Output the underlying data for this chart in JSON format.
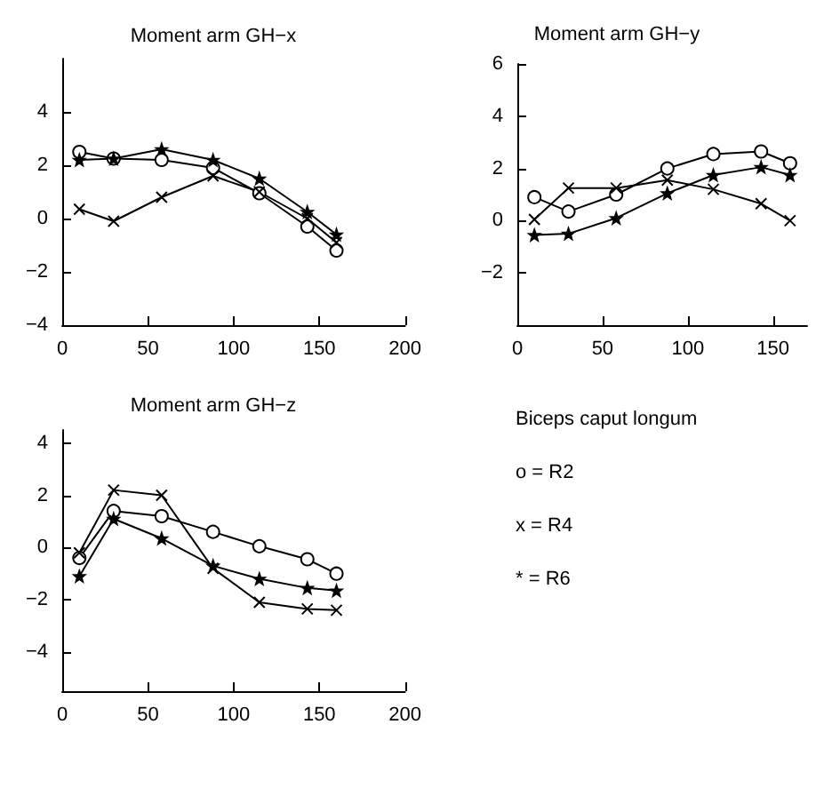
{
  "chart_data": [
    {
      "type": "line",
      "title": "Moment arm GH−x",
      "x": [
        10,
        30,
        58,
        88,
        115,
        143,
        160
      ],
      "xlim": [
        0,
        200
      ],
      "xticks": [
        0,
        50,
        100,
        150,
        200
      ],
      "ylim": [
        -4,
        6
      ],
      "yticks": [
        -4,
        -2,
        0,
        2,
        4
      ],
      "grid": false,
      "series": [
        {
          "color": "#000000",
          "marker": "circle",
          "values": [
            2.5,
            2.25,
            2.2,
            1.9,
            0.95,
            -0.3,
            -1.2
          ]
        },
        {
          "color": "#000000",
          "marker": "cross",
          "values": [
            0.35,
            -0.1,
            0.8,
            1.6,
            1.0,
            0.0,
            -0.9
          ]
        },
        {
          "color": "#000000",
          "marker": "star",
          "values": [
            2.2,
            2.25,
            2.6,
            2.2,
            1.5,
            0.25,
            -0.6
          ]
        }
      ]
    },
    {
      "type": "line",
      "title": "Moment arm GH−y",
      "x": [
        10,
        30,
        58,
        88,
        115,
        143,
        160
      ],
      "xlim": [
        0,
        170
      ],
      "xticks": [
        0,
        50,
        100,
        150
      ],
      "ylim": [
        -4,
        6
      ],
      "yticks": [
        -2,
        0,
        2,
        4,
        6
      ],
      "grid": false,
      "series": [
        {
          "color": "#000000",
          "marker": "circle",
          "values": [
            0.9,
            0.35,
            1.0,
            2.0,
            2.55,
            2.65,
            2.2
          ]
        },
        {
          "color": "#000000",
          "marker": "cross",
          "values": [
            0.05,
            1.25,
            1.25,
            1.55,
            1.2,
            0.65,
            0.0
          ]
        },
        {
          "color": "#000000",
          "marker": "star",
          "values": [
            -0.55,
            -0.5,
            0.1,
            1.05,
            1.75,
            2.05,
            1.75
          ]
        }
      ]
    },
    {
      "type": "line",
      "title": "Moment arm GH−z",
      "x": [
        10,
        30,
        58,
        88,
        115,
        143,
        160
      ],
      "xlim": [
        0,
        200
      ],
      "xticks": [
        0,
        50,
        100,
        150,
        200
      ],
      "ylim": [
        -5.5,
        4.5
      ],
      "yticks": [
        -4,
        -2,
        0,
        2,
        4
      ],
      "grid": false,
      "series": [
        {
          "color": "#000000",
          "marker": "circle",
          "values": [
            -0.4,
            1.4,
            1.2,
            0.6,
            0.05,
            -0.45,
            -1.0
          ]
        },
        {
          "color": "#000000",
          "marker": "cross",
          "values": [
            -0.2,
            2.2,
            2.0,
            -0.8,
            -2.1,
            -2.35,
            -2.4
          ]
        },
        {
          "color": "#000000",
          "marker": "star",
          "values": [
            -1.1,
            1.1,
            0.35,
            -0.7,
            -1.2,
            -1.55,
            -1.65
          ]
        }
      ]
    },
    {
      "type": "other",
      "annotations": [
        "Biceps caput longum",
        "o = R2",
        "x = R4",
        "* = R6"
      ]
    }
  ]
}
